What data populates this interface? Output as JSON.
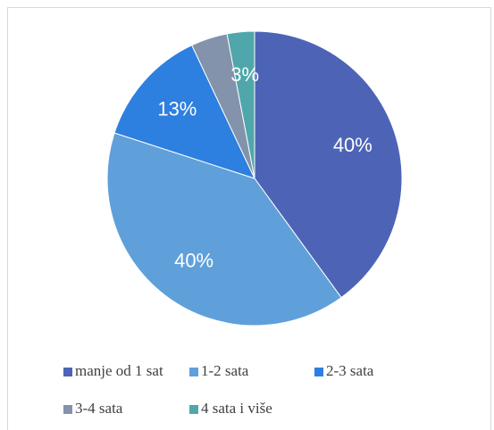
{
  "chart_data": {
    "type": "pie",
    "categories": [
      "manje od 1 sat",
      "1-2 sata",
      "2-3 sata",
      "3-4 sata",
      "4 sata i više"
    ],
    "values": [
      40,
      40,
      13,
      4,
      3
    ],
    "value_labels": [
      "40%",
      "40%",
      "13%",
      null,
      "3%"
    ],
    "colors": [
      "#4d64b6",
      "#5fa0da",
      "#2d7fe0",
      "#8393ab",
      "#4fa7ab"
    ],
    "legend": "bottom"
  }
}
